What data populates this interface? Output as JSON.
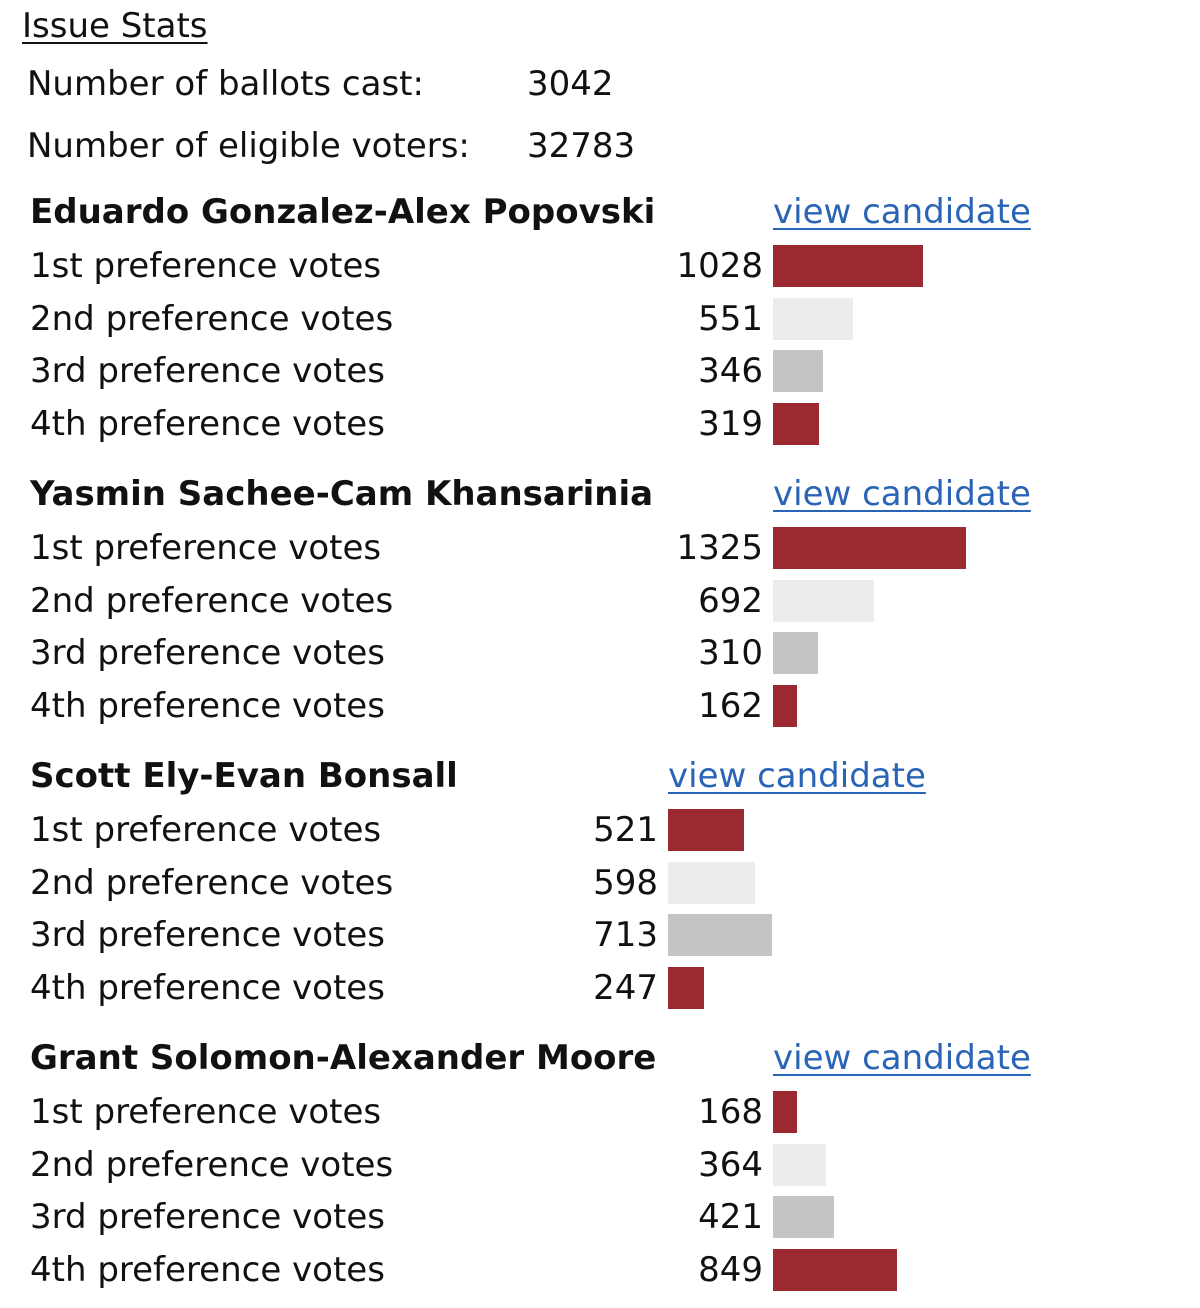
{
  "header": {
    "title": "Issue Stats"
  },
  "stats": {
    "ballots_label": "Number of ballots cast:",
    "ballots_value": "3042",
    "eligible_label": "Number of eligible voters:",
    "eligible_value": "32783"
  },
  "colors": {
    "pref_1": "#9b2a33",
    "pref_2": "#ececec",
    "pref_3": "#c4c4c4",
    "pref_4": "#9b2a33",
    "link": "#2a64b6"
  },
  "candidates": [
    {
      "name": "Eduardo Gonzalez-Alex Popovski",
      "link": "view candidate",
      "prefs": [
        {
          "label": "1st preference votes",
          "count": 1028
        },
        {
          "label": "2nd preference votes",
          "count": 551
        },
        {
          "label": "3rd preference votes",
          "count": 346
        },
        {
          "label": "4th preference votes",
          "count": 319
        }
      ]
    },
    {
      "name": "Yasmin Sachee-Cam Khansarinia",
      "link": "view candidate",
      "prefs": [
        {
          "label": "1st preference votes",
          "count": 1325
        },
        {
          "label": "2nd preference votes",
          "count": 692
        },
        {
          "label": "3rd preference votes",
          "count": 310
        },
        {
          "label": "4th preference votes",
          "count": 162
        }
      ]
    },
    {
      "name": "Scott Ely-Evan Bonsall",
      "link": "view candidate",
      "prefs": [
        {
          "label": "1st preference votes",
          "count": 521
        },
        {
          "label": "2nd preference votes",
          "count": 598
        },
        {
          "label": "3rd preference votes",
          "count": 713
        },
        {
          "label": "4th preference votes",
          "count": 247
        }
      ]
    },
    {
      "name": "Grant Solomon-Alexander Moore",
      "link": "view candidate",
      "prefs": [
        {
          "label": "1st preference votes",
          "count": 168
        },
        {
          "label": "2nd preference votes",
          "count": 364
        },
        {
          "label": "3rd preference votes",
          "count": 421
        },
        {
          "label": "4th preference votes",
          "count": 849
        }
      ]
    }
  ]
}
